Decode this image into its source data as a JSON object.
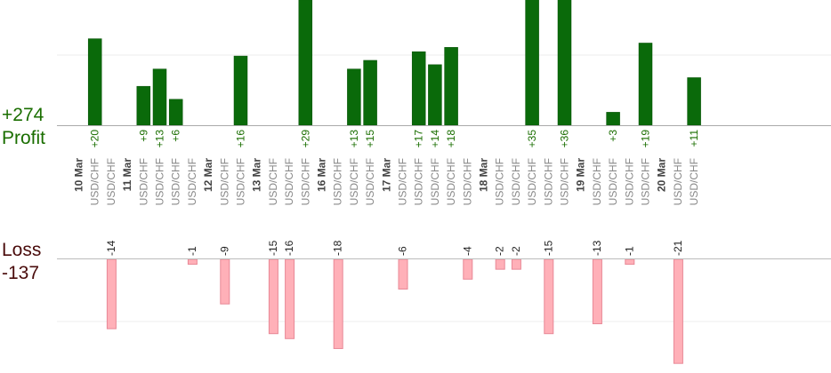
{
  "summary": {
    "profit_total": "+274",
    "profit_label": "Profit",
    "loss_label": "Loss",
    "loss_total": "-137"
  },
  "colors": {
    "profit_bar": "#0a6a0a",
    "loss_bar": "#ffb0b8",
    "profit_text": "#1a6e00",
    "loss_text": "#4a0c0c",
    "axis_text": "#888888",
    "date_text": "#444444"
  },
  "chart_data": {
    "type": "bar",
    "groups": [
      {
        "date": "10 Mar",
        "symbols": [
          "USD/CHF",
          "USD/CHF"
        ],
        "values": [
          20,
          -14
        ]
      },
      {
        "date": "11 Mar",
        "symbols": [
          "USD/CHF",
          "USD/CHF",
          "USD/CHF",
          "USD/CHF"
        ],
        "values": [
          9,
          13,
          6,
          -1
        ]
      },
      {
        "date": "12 Mar",
        "symbols": [
          "USD/CHF",
          "USD/CHF"
        ],
        "values": [
          -9,
          16
        ]
      },
      {
        "date": "13 Mar",
        "symbols": [
          "USD/CHF",
          "USD/CHF",
          "USD/CHF"
        ],
        "values": [
          -15,
          -16,
          29
        ]
      },
      {
        "date": "16 Mar",
        "symbols": [
          "USD/CHF",
          "USD/CHF",
          "USD/CHF"
        ],
        "values": [
          -18,
          13,
          15
        ]
      },
      {
        "date": "17 Mar",
        "symbols": [
          "USD/CHF",
          "USD/CHF",
          "USD/CHF",
          "USD/CHF",
          "USD/CHF"
        ],
        "values": [
          -6,
          17,
          14,
          18,
          -4
        ]
      },
      {
        "date": "18 Mar",
        "symbols": [
          "USD/CHF",
          "USD/CHF",
          "USD/CHF",
          "USD/CHF",
          "USD/CHF"
        ],
        "values": [
          -2,
          -2,
          35,
          -15,
          36
        ]
      },
      {
        "date": "19 Mar",
        "symbols": [
          "USD/CHF",
          "USD/CHF",
          "USD/CHF",
          "USD/CHF"
        ],
        "values": [
          -13,
          3,
          -1,
          19
        ]
      },
      {
        "date": "20 Mar",
        "symbols": [
          "USD/CHF",
          "USD/CHF"
        ],
        "values": [
          -21,
          11
        ]
      }
    ]
  }
}
